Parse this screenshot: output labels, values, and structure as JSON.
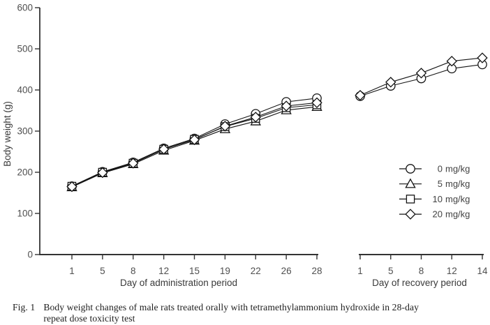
{
  "caption": {
    "prefix": "Fig. 1",
    "lines": [
      "Body weight changes of male rats treated orally with tetramethylammonium hydroxide in 28-day",
      "repeat dose toxicity test"
    ]
  },
  "chart_data": {
    "type": "line",
    "ylabel": "Body weight (g)",
    "ylim": [
      0,
      600
    ],
    "yticks": [
      0,
      100,
      200,
      300,
      400,
      500,
      600
    ],
    "grid": false,
    "legend_position": "right-middle",
    "panels": [
      {
        "xlabel": "Day of administration period",
        "categories": [
          "1",
          "5",
          "8",
          "12",
          "15",
          "19",
          "22",
          "26",
          "28"
        ],
        "series": [
          {
            "name": "0 mg/kg",
            "marker": "circle",
            "values": [
              166,
              201,
              224,
              258,
              282,
              317,
              342,
              371,
              380
            ]
          },
          {
            "name": "5 mg/kg",
            "marker": "triangle",
            "values": [
              164,
              198,
              220,
              253,
              277,
              305,
              324,
              351,
              359
            ]
          },
          {
            "name": "10 mg/kg",
            "marker": "square",
            "values": [
              166,
              200,
              222,
              256,
              280,
              311,
              331,
              357,
              364
            ]
          },
          {
            "name": "20 mg/kg",
            "marker": "diamond",
            "values": [
              165,
              199,
              222,
              256,
              279,
              312,
              334,
              361,
              369
            ]
          }
        ]
      },
      {
        "xlabel": "Day of recovery period",
        "categories": [
          "1",
          "5",
          "8",
          "12",
          "14"
        ],
        "series": [
          {
            "name": "0 mg/kg",
            "marker": "circle",
            "values": [
              385,
              410,
              428,
              452,
              462
            ]
          },
          {
            "name": "20 mg/kg",
            "marker": "diamond",
            "values": [
              387,
              419,
              441,
              470,
              478
            ]
          }
        ]
      }
    ],
    "legend": [
      {
        "label": "0 mg/kg",
        "marker": "circle"
      },
      {
        "label": "5 mg/kg",
        "marker": "triangle"
      },
      {
        "label": "10 mg/kg",
        "marker": "square"
      },
      {
        "label": "20 mg/kg",
        "marker": "diamond"
      }
    ],
    "colors": {
      "background": "#ffffff",
      "axis": "#333333",
      "series_line": "#141414",
      "marker_fill": "#ffffff",
      "tick_label": "#4f4f4f",
      "axis_title": "#3a3a3a",
      "legend_text": "#424242"
    }
  }
}
